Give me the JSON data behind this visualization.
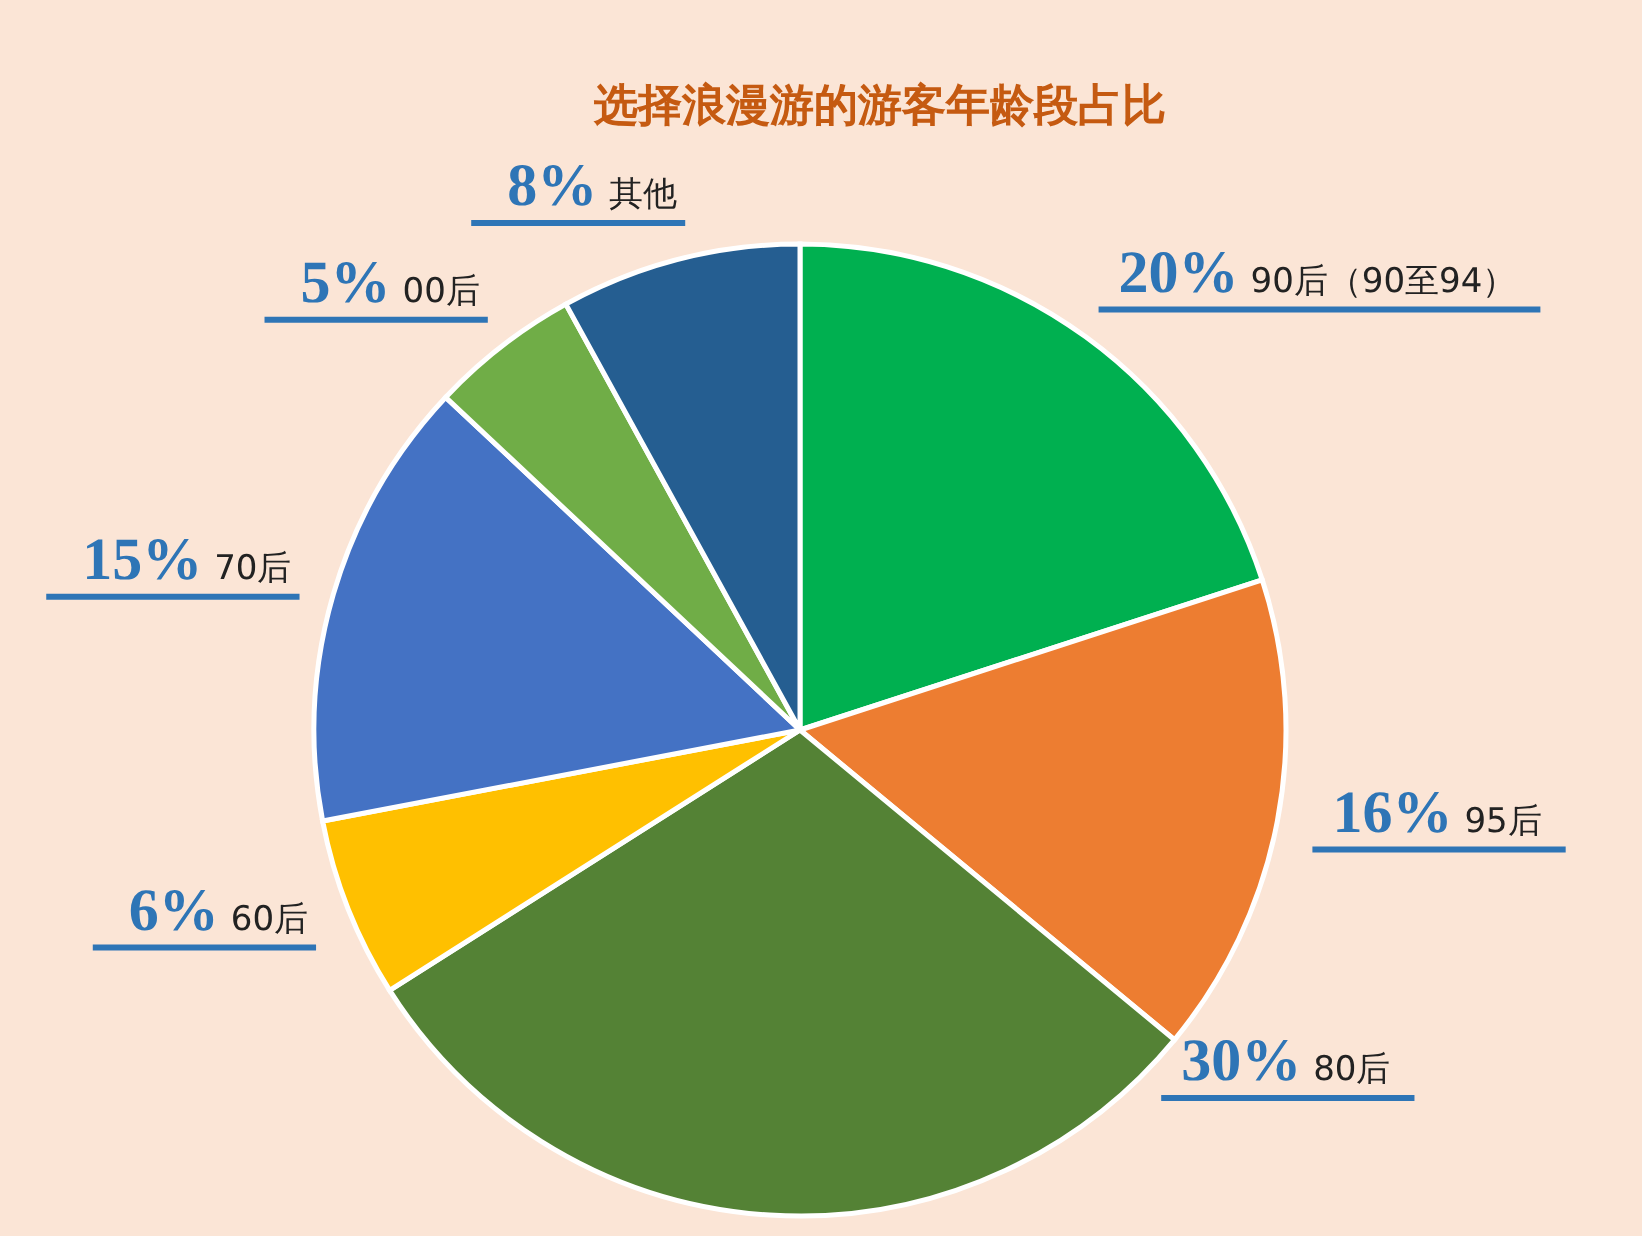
{
  "chart_data": {
    "type": "pie",
    "title": "选择浪漫游的游客年龄段占比",
    "categories": [
      "90后（90至94）",
      "95后",
      "80后",
      "60后",
      "70后",
      "00后",
      "其他"
    ],
    "values": [
      20,
      16,
      30,
      6,
      15,
      5,
      8
    ],
    "colors": [
      "#00b050",
      "#ed7d31",
      "#548235",
      "#ffc000",
      "#4472c4",
      "#70ad47",
      "#255e91"
    ],
    "value_labels": [
      "20%",
      "16%",
      "30%",
      "6%",
      "15%",
      "5%",
      "8%"
    ]
  }
}
